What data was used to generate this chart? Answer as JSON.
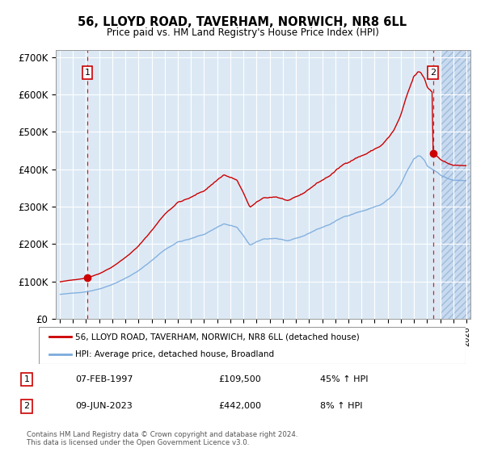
{
  "title": "56, LLOYD ROAD, TAVERHAM, NORWICH, NR8 6LL",
  "subtitle": "Price paid vs. HM Land Registry's House Price Index (HPI)",
  "ylabel_ticks": [
    "£0",
    "£100K",
    "£200K",
    "£300K",
    "£400K",
    "£500K",
    "£600K",
    "£700K"
  ],
  "ylabel_values": [
    0,
    100000,
    200000,
    300000,
    400000,
    500000,
    600000,
    700000
  ],
  "ylim": [
    0,
    720000
  ],
  "xlim_start": 1994.7,
  "xlim_end": 2026.3,
  "plot_bg": "#dce9f5",
  "sale1_x": 1997.1,
  "sale1_y": 109500,
  "sale2_x": 2023.44,
  "sale2_y": 442000,
  "legend_line1": "56, LLOYD ROAD, TAVERHAM, NORWICH, NR8 6LL (detached house)",
  "legend_line2": "HPI: Average price, detached house, Broadland",
  "table_row1": [
    "1",
    "07-FEB-1997",
    "£109,500",
    "45% ↑ HPI"
  ],
  "table_row2": [
    "2",
    "09-JUN-2023",
    "£442,000",
    "8% ↑ HPI"
  ],
  "footer": "Contains HM Land Registry data © Crown copyright and database right 2024.\nThis data is licensed under the Open Government Licence v3.0.",
  "line_color_red": "#cc0000",
  "line_color_blue": "#7aaadd",
  "marker_color": "#cc0000"
}
